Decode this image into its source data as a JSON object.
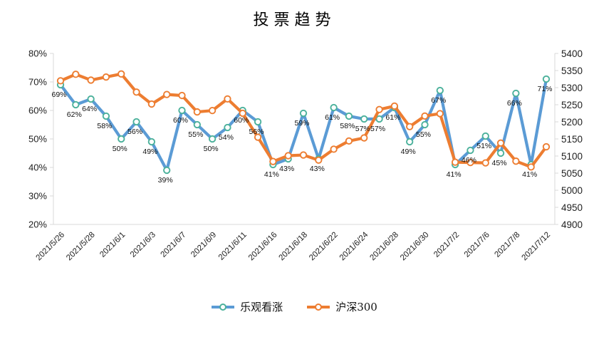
{
  "title": "投票趋势",
  "colors": {
    "bullish_line": "#5B9BD5",
    "bullish_marker_ring": "#4BB19B",
    "index_line": "#ED7D31",
    "index_marker_ring": "#ED7D31",
    "axis_line": "#d9d9d9",
    "axis_text": "#1f1f1f",
    "point_label_text": "#111111",
    "background": "#ffffff"
  },
  "chart_data": {
    "type": "line",
    "title": "投票趋势",
    "x_point_count": 33,
    "x_tick_indices": [
      0,
      2,
      4,
      6,
      8,
      10,
      12,
      14,
      16,
      18,
      20,
      22,
      24,
      26,
      28,
      30,
      32
    ],
    "x_tick_labels": [
      "2021/5/26",
      "2021/5/28",
      "2021/6/1",
      "2021/6/3",
      "2021/6/7",
      "2021/6/9",
      "2021/6/11",
      "2021/6/16",
      "2021/6/18",
      "2021/6/22",
      "2021/6/24",
      "2021/6/28",
      "2021/6/30",
      "2021/7/2",
      "2021/7/6",
      "2021/7/8",
      "2021/7/12"
    ],
    "series": [
      {
        "name": "乐观看涨",
        "axis": "left",
        "color": "#5B9BD5",
        "marker_ring": "#4BB19B",
        "show_labels": true,
        "label_suffix": "%",
        "values": [
          69,
          62,
          64,
          58,
          50,
          56,
          49,
          39,
          60,
          55,
          50,
          54,
          60,
          56,
          41,
          43,
          59,
          43,
          61,
          58,
          57,
          57,
          61,
          49,
          55,
          67,
          41,
          46,
          51,
          45,
          66,
          41,
          71
        ]
      },
      {
        "name": "沪深300",
        "axis": "right",
        "color": "#ED7D31",
        "marker_ring": "#ED7D31",
        "show_labels": false,
        "label_suffix": "",
        "values": [
          5320,
          5339,
          5322,
          5331,
          5340,
          5287,
          5252,
          5280,
          5277,
          5229,
          5233,
          5267,
          5225,
          5155,
          5084,
          5101,
          5103,
          5088,
          5120,
          5144,
          5153,
          5236,
          5246,
          5186,
          5217,
          5224,
          5082,
          5081,
          5080,
          5138,
          5085,
          5068,
          5127
        ]
      }
    ],
    "left_axis": {
      "min": 20,
      "max": 80,
      "tick_labels": [
        "80%",
        "70%",
        "60%",
        "50%",
        "40%",
        "30%",
        "20%"
      ]
    },
    "right_axis": {
      "min": 4900,
      "max": 5400,
      "tick_labels": [
        "5400",
        "5350",
        "5300",
        "5250",
        "5200",
        "5150",
        "5100",
        "5050",
        "5000",
        "4950",
        "4900"
      ]
    },
    "legend": [
      {
        "label": "乐观看涨"
      },
      {
        "label": "沪深300"
      }
    ],
    "grid": false,
    "legend_position": "bottom"
  }
}
